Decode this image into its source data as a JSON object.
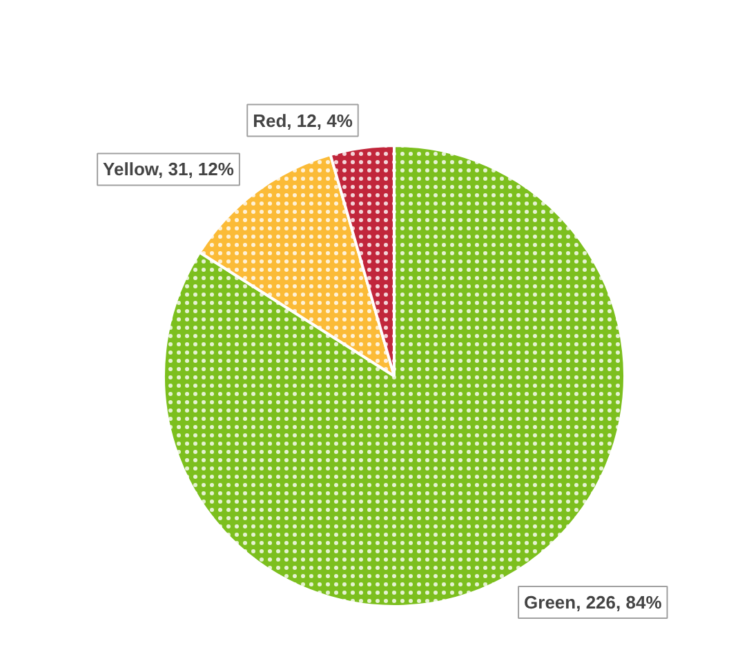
{
  "chart_data": {
    "type": "pie",
    "categories": [
      "Green",
      "Yellow",
      "Red"
    ],
    "values": [
      226,
      31,
      12
    ],
    "colors": [
      "#7cbf1e",
      "#fbbb37",
      "#c1263b"
    ],
    "value_labels": [
      "226, 84%",
      "31, 12%",
      "12, 4%"
    ]
  }
}
